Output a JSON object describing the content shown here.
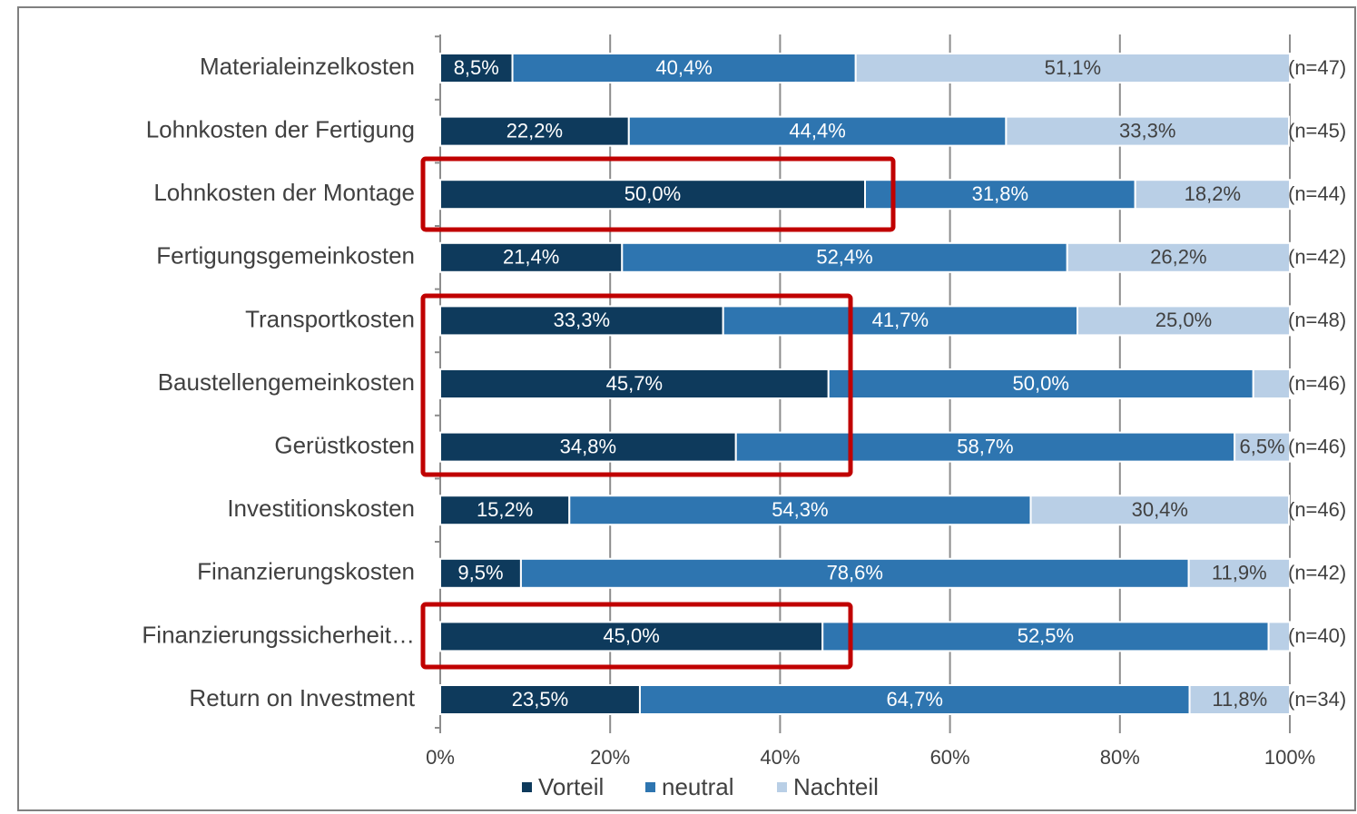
{
  "chart_data": {
    "type": "stacked-bar-horizontal",
    "categories": [
      "Materialeinzelkosten",
      "Lohnkosten der Fertigung",
      "Lohnkosten der Montage",
      "Fertigungsgemeinkosten",
      "Transportkosten",
      "Baustellengemeinkosten",
      "Gerüstkosten",
      "Investitionskosten",
      "Finanzierungskosten",
      "Finanzierungssicherheit…",
      "Return on Investment"
    ],
    "series": [
      {
        "name": "Vorteil",
        "color": "#0e3a5c",
        "text_color": "#ffffff",
        "values": [
          8.5,
          22.2,
          50.0,
          21.4,
          33.3,
          45.7,
          34.8,
          15.2,
          9.5,
          45.0,
          23.5
        ],
        "value_labels": [
          "8,5%",
          "22,2%",
          "50,0%",
          "21,4%",
          "33,3%",
          "45,7%",
          "34,8%",
          "15,2%",
          "9,5%",
          "45,0%",
          "23,5%"
        ]
      },
      {
        "name": "neutral",
        "color": "#2e75b0",
        "text_color": "#ffffff",
        "values": [
          40.4,
          44.4,
          31.8,
          52.4,
          41.7,
          50.0,
          58.7,
          54.3,
          78.6,
          52.5,
          64.7
        ],
        "value_labels": [
          "40,4%",
          "44,4%",
          "31,8%",
          "52,4%",
          "41,7%",
          "50,0%",
          "58,7%",
          "54,3%",
          "78,6%",
          "52,5%",
          "64,7%"
        ]
      },
      {
        "name": "Nachteil",
        "color": "#b9cfe6",
        "text_color": "#404040",
        "values": [
          51.1,
          33.3,
          18.2,
          26.2,
          25.0,
          4.3,
          6.5,
          30.4,
          11.9,
          2.5,
          11.8
        ],
        "value_labels": [
          "51,1%",
          "33,3%",
          "18,2%",
          "26,2%",
          "25,0%",
          null,
          "6,5%",
          "30,4%",
          "11,9%",
          null,
          "11,8%"
        ]
      }
    ],
    "n_labels": [
      "(n=47)",
      "(n=45)",
      "(n=44)",
      "(n=42)",
      "(n=48)",
      "(n=46)",
      "(n=46)",
      "(n=46)",
      "(n=42)",
      "(n=40)",
      "(n=34)"
    ],
    "xlim": [
      0,
      100
    ],
    "xticks": [
      {
        "value": 0,
        "label": "0%"
      },
      {
        "value": 20,
        "label": "20%"
      },
      {
        "value": 40,
        "label": "40%"
      },
      {
        "value": 60,
        "label": "60%"
      },
      {
        "value": 80,
        "label": "80%"
      },
      {
        "value": 100,
        "label": "100%"
      }
    ],
    "grid": true
  }
}
